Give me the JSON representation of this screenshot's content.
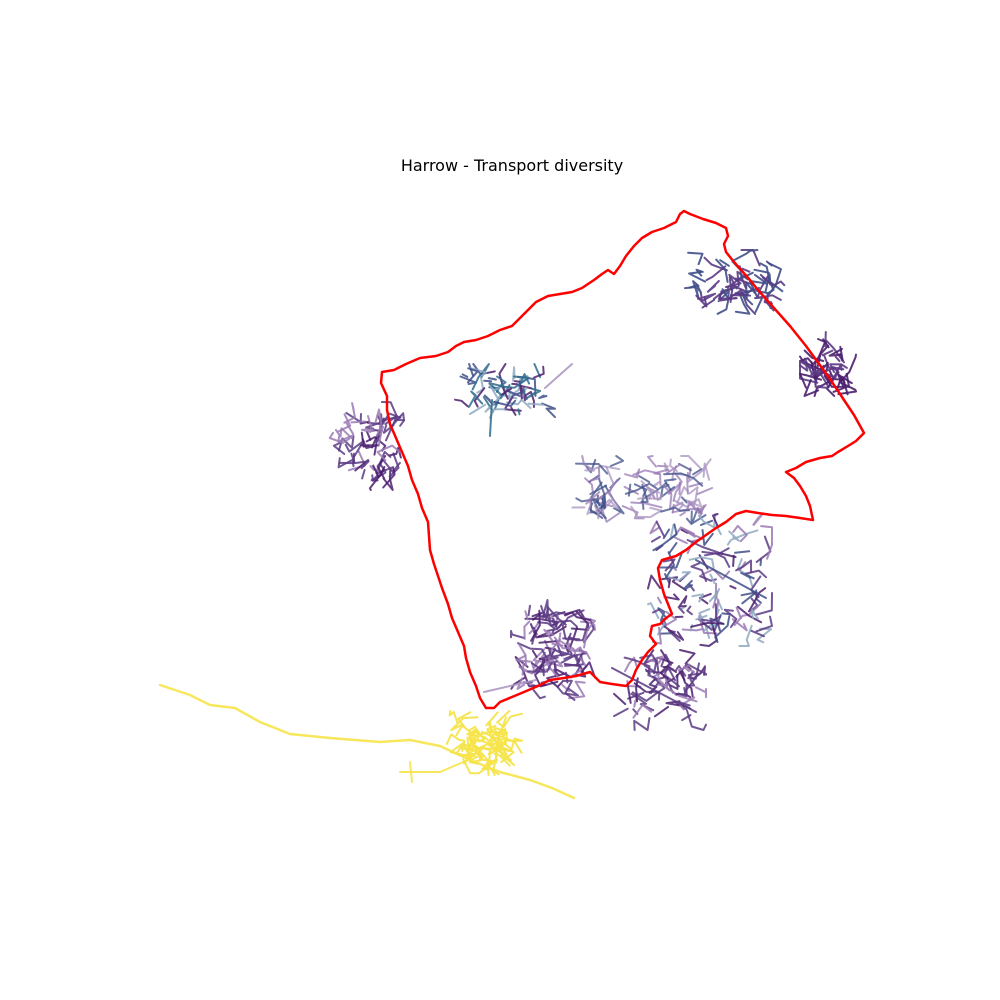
{
  "title": "Harrow - Transport diversity",
  "colors": {
    "boundary": "#ff0000",
    "deep_purple": "#4b1f6f",
    "purple": "#5b3a84",
    "light_purple": "#9a7ab4",
    "pale_purple": "#a893c0",
    "slate_blue": "#3f4f8a",
    "teal_blue": "#2f6b8c",
    "pale_blue": "#8fa9c2",
    "yellow": "#f5e44a"
  }
}
